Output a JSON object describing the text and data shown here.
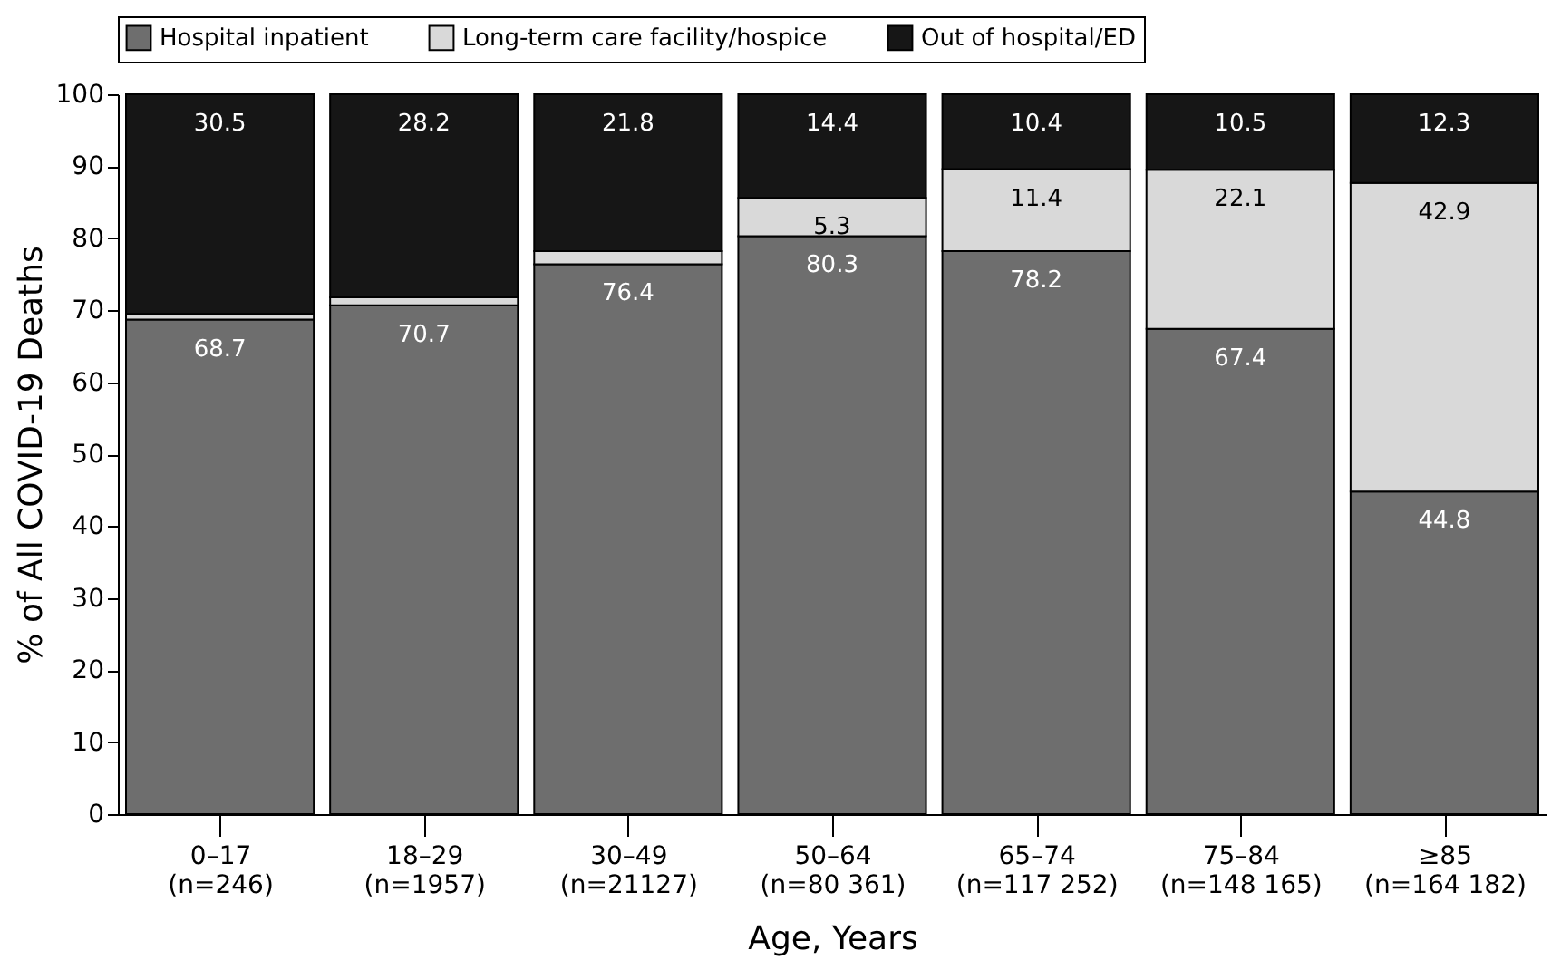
{
  "chart_data": {
    "type": "bar",
    "stacked": true,
    "xlabel": "Age, Years",
    "ylabel": "% of All COVID-19 Deaths",
    "categories": [
      "0–17\n(n=246)",
      "18–29\n(n=1957)",
      "30–49\n(n=21127)",
      "50–64\n(n=80 361)",
      "65–74\n(n=117 252)",
      "75–84\n(n=148 165)",
      "≥85\n(n=164 182)"
    ],
    "series": [
      {
        "name": "Hospital inpatient",
        "color": "#6e6e6e",
        "values": [
          68.7,
          70.7,
          76.4,
          80.3,
          78.2,
          67.4,
          44.8
        ],
        "value_labels": [
          "68.7",
          "70.7",
          "76.4",
          "80.3",
          "78.2",
          "67.4",
          "44.8"
        ]
      },
      {
        "name": "Long-term care facility/hospice",
        "color": "#d9d9d9",
        "values": [
          0.8,
          1.1,
          1.8,
          5.3,
          11.4,
          22.1,
          42.9
        ],
        "value_labels": [
          null,
          null,
          null,
          "5.3",
          "11.4",
          "22.1",
          "42.9"
        ]
      },
      {
        "name": "Out of hospital/ED",
        "color": "#161616",
        "values": [
          30.5,
          28.2,
          21.8,
          14.4,
          10.4,
          10.5,
          12.3
        ],
        "value_labels": [
          "30.5",
          "28.2",
          "21.8",
          "14.4",
          "10.4",
          "10.5",
          "12.3"
        ]
      }
    ],
    "ylim": [
      0,
      100
    ],
    "yticks": [
      0,
      10,
      20,
      30,
      40,
      50,
      60,
      70,
      80,
      90,
      100
    ],
    "grid": false,
    "legend": "top"
  }
}
